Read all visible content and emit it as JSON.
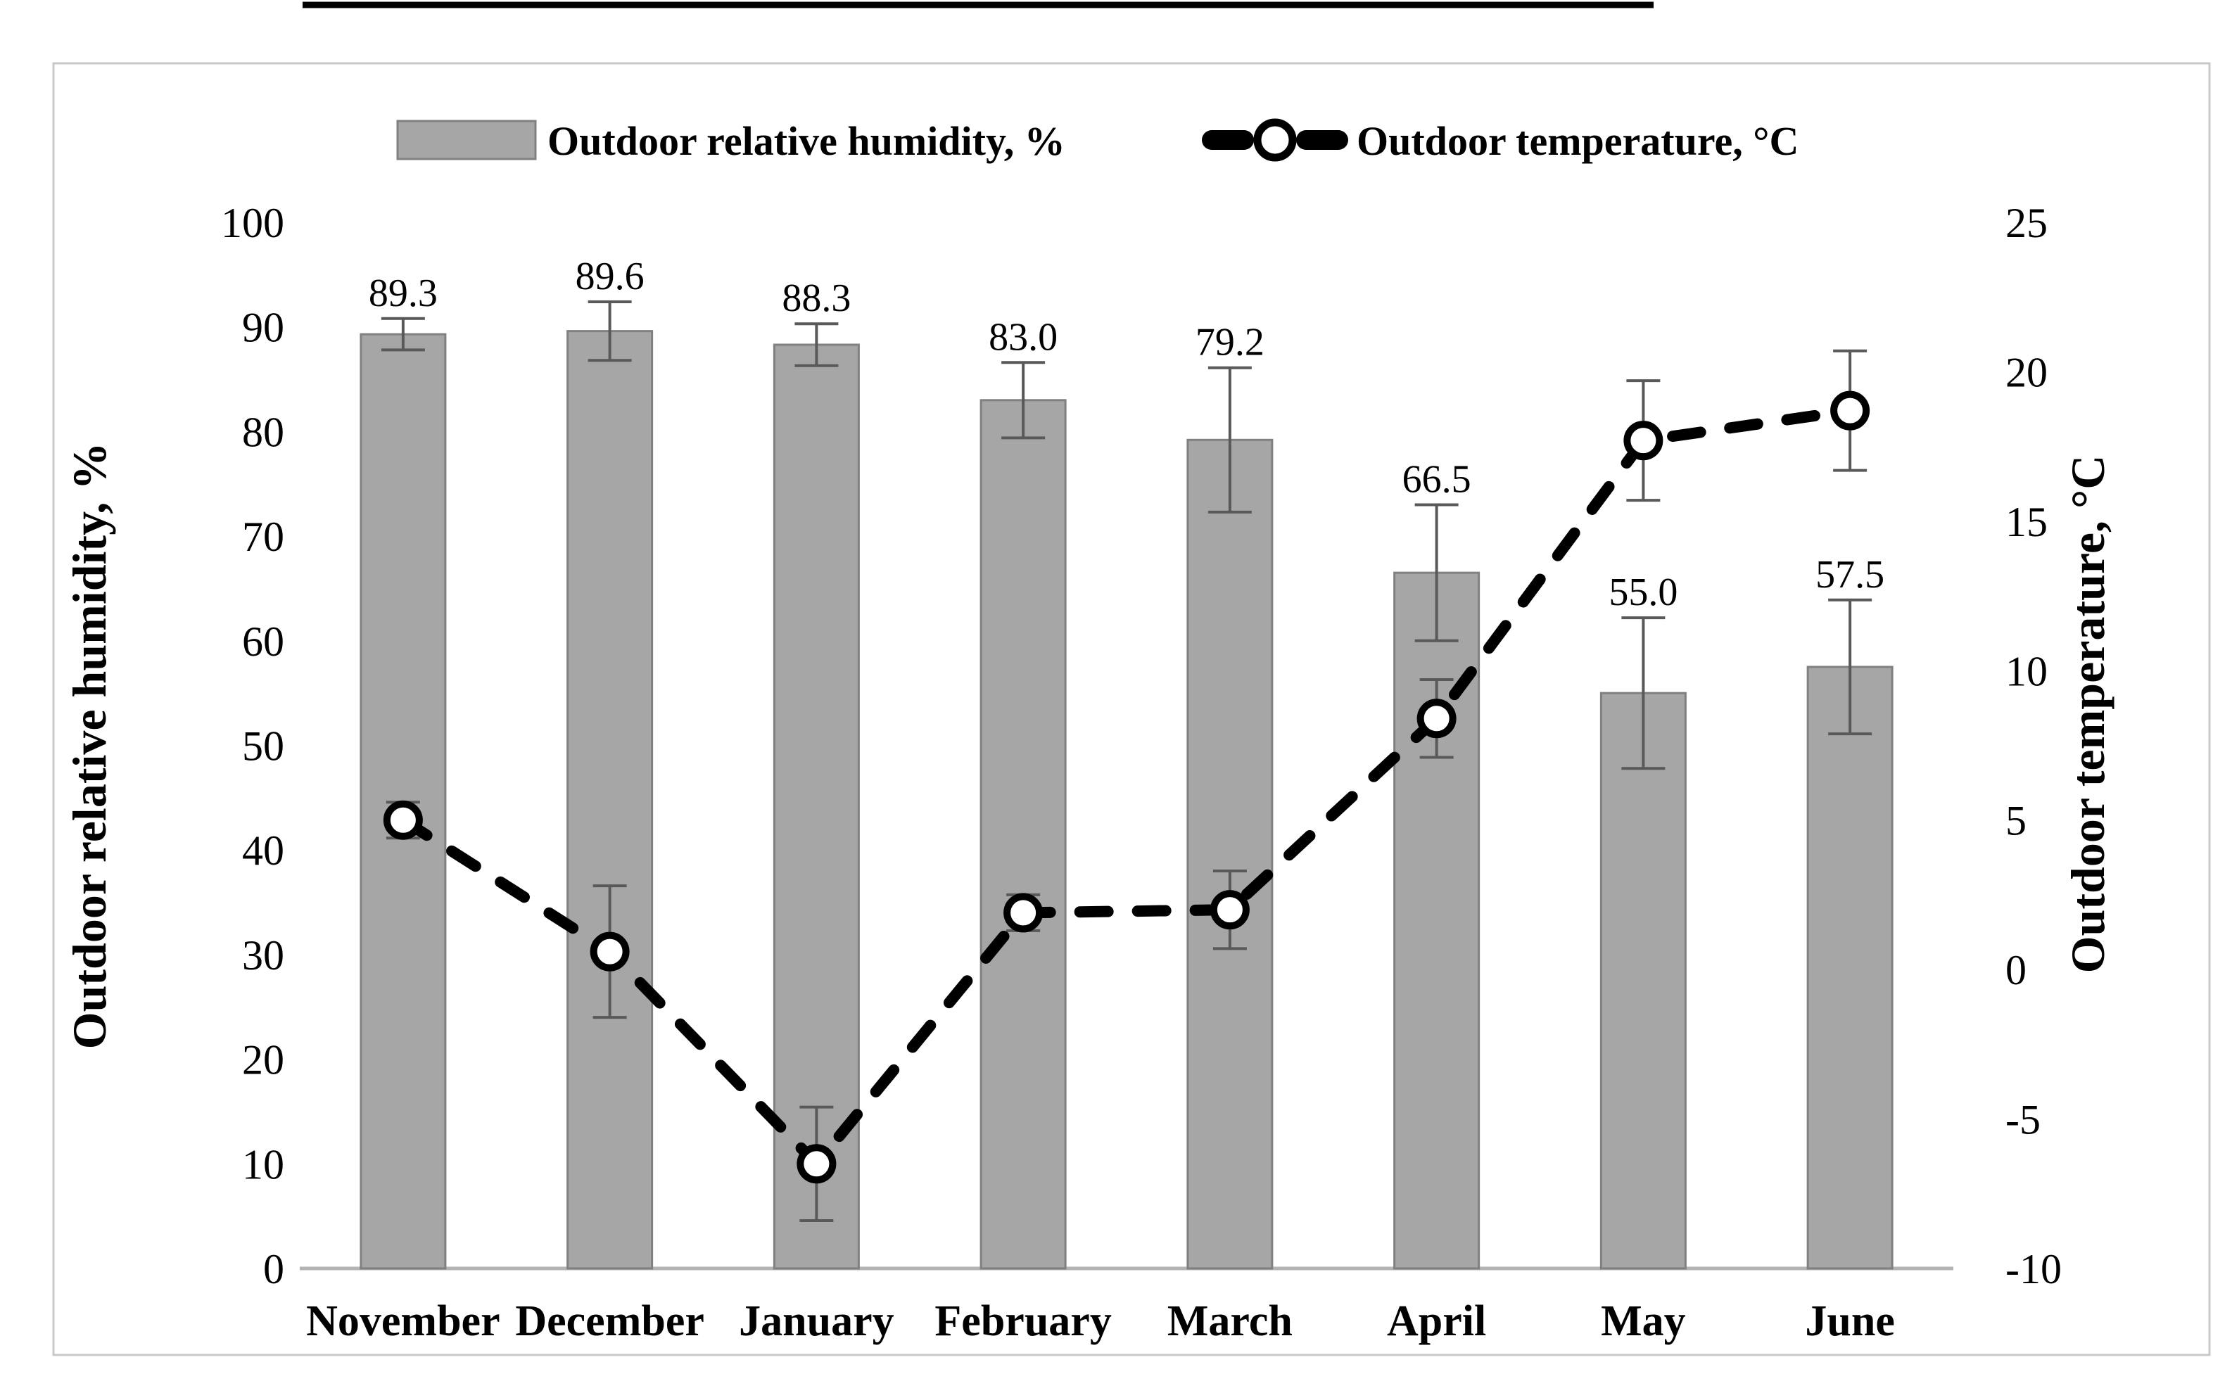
{
  "figure": {
    "legend": {
      "bar_label": "Outdoor relative humidity, %",
      "line_label": "Outdoor temperature, °C"
    },
    "colors": {
      "bar_fill": "#a6a6a6",
      "bar_stroke": "#808080",
      "error_bar": "#595959",
      "line": "#000000",
      "marker_fill": "#ffffff",
      "frame": "#c9c9c9",
      "axis_line": "#b3b3b3"
    }
  },
  "chart_data": {
    "type": "combo-bar-line",
    "categories": [
      "November",
      "December",
      "January",
      "February",
      "March",
      "April",
      "May",
      "June"
    ],
    "series": [
      {
        "name": "Outdoor relative humidity, %",
        "type": "bar",
        "axis": "left",
        "values": [
          89.3,
          89.6,
          88.3,
          83.0,
          79.2,
          66.5,
          55.0,
          57.5
        ],
        "errors": [
          1.5,
          2.8,
          2.0,
          3.6,
          6.9,
          6.5,
          7.2,
          6.4
        ],
        "data_labels": [
          "89.3",
          "89.6",
          "88.3",
          "83.0",
          "79.2",
          "66.5",
          "55.0",
          "57.5"
        ],
        "color": "#a6a6a6"
      },
      {
        "name": "Outdoor temperature, °C",
        "type": "line",
        "axis": "right",
        "style": "dashed",
        "marker": "open-circle",
        "values": [
          5.0,
          0.6,
          -6.5,
          1.9,
          2.0,
          8.4,
          17.7,
          18.7
        ],
        "errors": [
          0.6,
          2.2,
          1.9,
          0.6,
          1.3,
          1.3,
          2.0,
          2.0
        ],
        "color": "#000000"
      }
    ],
    "left_axis": {
      "title": "Outdoor relative humidity, %",
      "min": 0,
      "max": 100,
      "step": 10
    },
    "right_axis": {
      "title": "Outdoor temperature, °C",
      "min": -10,
      "max": 25,
      "step": 5
    },
    "legend_position": "top",
    "grid": false,
    "title": ""
  }
}
